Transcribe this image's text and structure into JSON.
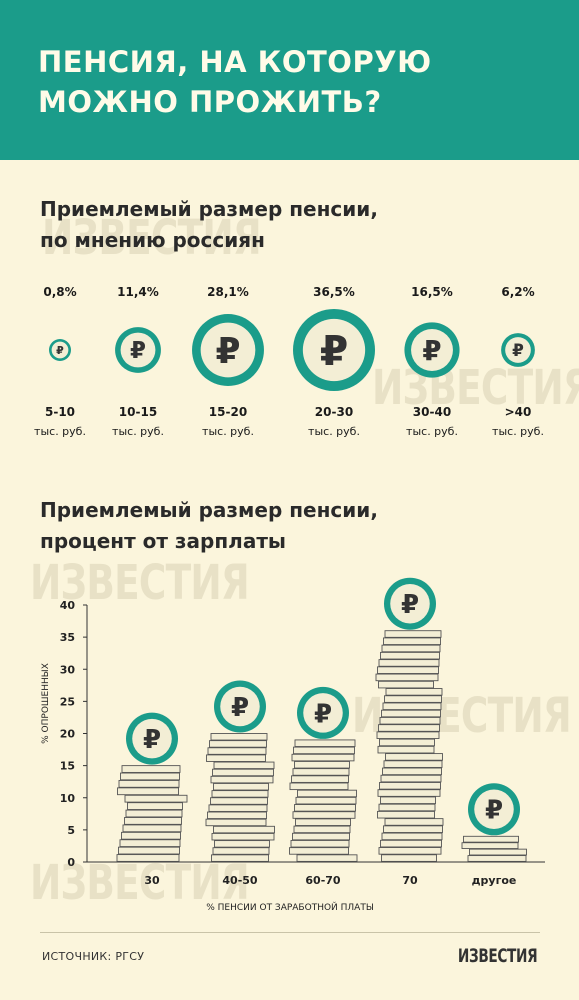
{
  "header": {
    "title_line1": "ПЕНСИЯ, НА КОТОРУЮ",
    "title_line2": "МОЖНО ПРОЖИТЬ?"
  },
  "watermark_text": "ИЗВЕСТИЯ",
  "section1": {
    "title_line1": "Приемлемый размер пенсии,",
    "title_line2": "по мнению россиян"
  },
  "section2": {
    "title_line1": "Приемлемый размер пенсии,",
    "title_line2": "процент от зарплаты"
  },
  "chart_data": [
    {
      "type": "bubble",
      "categories": [
        "5-10",
        "10-15",
        "15-20",
        "20-30",
        "30-40",
        ">40"
      ],
      "category_unit": "тыс. руб.",
      "values": [
        0.8,
        11.4,
        28.1,
        36.5,
        16.5,
        6.2
      ],
      "value_labels": [
        "0,8%",
        "11,4%",
        "28,1%",
        "36,5%",
        "16,5%",
        "6,2%"
      ],
      "symbol": "₽"
    },
    {
      "type": "bar",
      "categories": [
        "30",
        "40-50",
        "60-70",
        "70",
        "другое"
      ],
      "values": [
        15,
        20,
        19,
        36,
        4
      ],
      "ylabel": "% ОПРОШЕННЫХ",
      "xlabel": "% ПЕНСИИ ОТ ЗАРАБОТНОЙ ПЛАТЫ",
      "ylim": [
        0,
        40
      ],
      "yticks": [
        0,
        5,
        10,
        15,
        20,
        25,
        30,
        35,
        40
      ],
      "symbol": "₽"
    }
  ],
  "footer": {
    "source": "ИСТОЧНИК:  РГСУ",
    "logo": "ИЗВЕСТИЯ"
  },
  "colors": {
    "accent": "#1b9c8a",
    "background": "#fbf5dc",
    "coin_fill": "#f3eed5",
    "coin_stroke": "#555555"
  }
}
